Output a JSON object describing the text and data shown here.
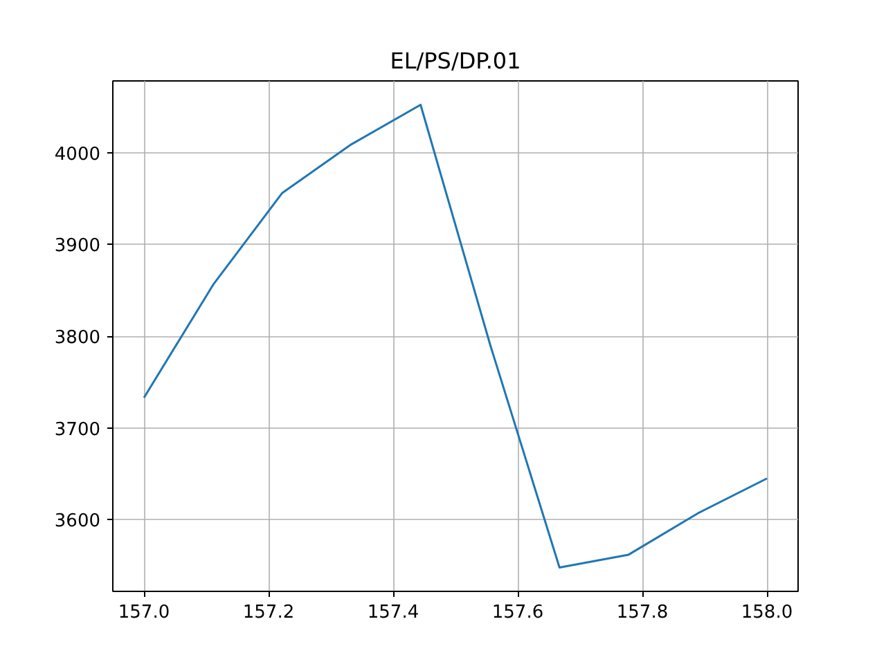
{
  "chart_data": {
    "type": "line",
    "title": "EL/PS/DP.01",
    "x": [
      157.0,
      157.111,
      157.222,
      157.333,
      157.444,
      157.556,
      157.667,
      157.778,
      157.889,
      158.0
    ],
    "series": [
      {
        "color": "#1f77b4",
        "values": [
          3733,
          3856,
          3956,
          4009,
          4052,
          3790,
          3548,
          3562,
          3607,
          3645
        ]
      }
    ],
    "xlim": [
      156.95,
      158.05
    ],
    "ylim": [
      3522,
      4078
    ],
    "xticks": [
      {
        "value": 157,
        "label": "157.0"
      },
      157.2,
      157.4,
      157.6,
      157.8,
      {
        "value": 158,
        "label": "158.0"
      }
    ],
    "yticks": [
      3600,
      3700,
      3800,
      3900,
      4000
    ],
    "grid": true
  }
}
